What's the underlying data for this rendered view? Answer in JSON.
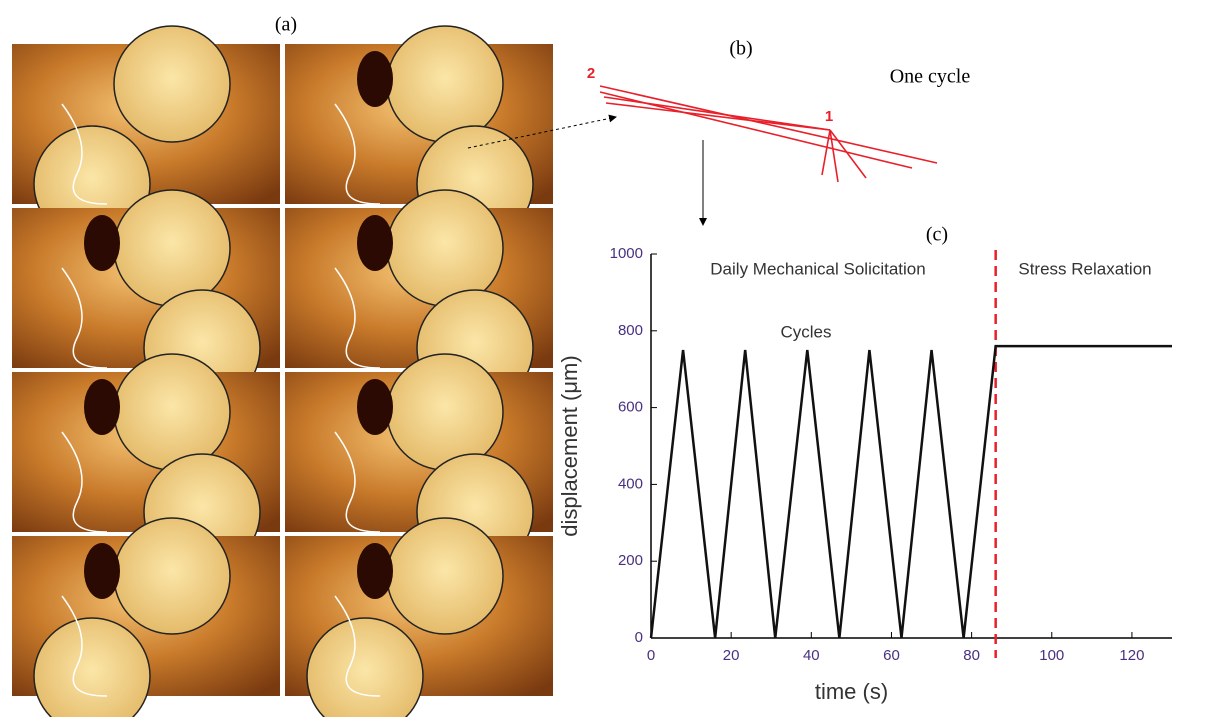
{
  "panel_labels": [
    "(a)",
    "(b)",
    "(c)"
  ],
  "diagram": {
    "title": "One cycle",
    "point_labels": [
      "2",
      "1"
    ]
  },
  "chart_data": {
    "type": "line",
    "x": [
      0,
      8,
      16,
      23.5,
      31,
      39,
      47,
      54.5,
      62.5,
      70,
      78,
      86,
      130
    ],
    "values": [
      0,
      750,
      0,
      750,
      0,
      750,
      0,
      750,
      0,
      750,
      0,
      760,
      760
    ],
    "color": "#111111",
    "xlim": [
      0,
      130
    ],
    "xticks": [
      0,
      20,
      40,
      60,
      80,
      100,
      120
    ],
    "ylim": [
      0,
      1000
    ],
    "yticks": [
      0,
      200,
      400,
      600,
      800,
      1000
    ],
    "xlabel": "time (s)",
    "ylabel": "displacement (μm)",
    "vline": {
      "x": 86,
      "color": "#e8202a"
    },
    "annotations": [
      "Daily Mechanical Solicitation",
      "Stress Relaxation",
      "Cycles"
    ]
  }
}
